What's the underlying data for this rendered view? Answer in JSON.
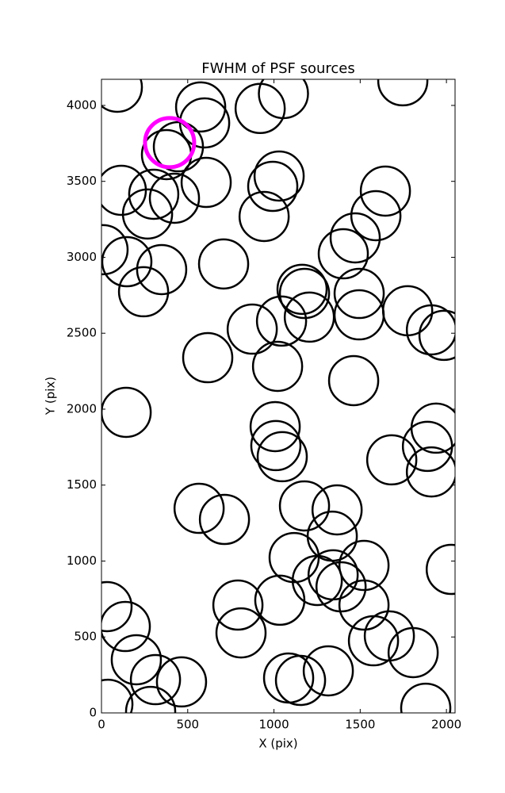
{
  "chart_data": {
    "type": "scatter",
    "title": "FWHM of PSF sources",
    "x_label": "X (pix)",
    "y_label": "Y (pix)",
    "x": [
      92,
      575,
      598,
      920,
      1055,
      1747,
      377,
      446,
      115,
      303,
      423,
      607,
      267,
      1030,
      993,
      943,
      1646,
      1591,
      1471,
      1402,
      9,
      147,
      349,
      244,
      708,
      1163,
      1177,
      1205,
      1044,
      874,
      1494,
      1494,
      1775,
      1913,
      1986,
      616,
      1021,
      1462,
      143,
      1007,
      1011,
      1048,
      1683,
      1940,
      1890,
      1913,
      566,
      713,
      1177,
      1366,
      1338,
      1117,
      1522,
      1251,
      1343,
      1389,
      2028,
      32,
      138,
      791,
      1034,
      1522,
      809,
      1577,
      1669,
      1807,
      202,
      313,
      464,
      1085,
      1154,
      1315,
      37,
      285,
      1880
    ],
    "y": [
      4120,
      3990,
      3885,
      3980,
      4078,
      4162,
      3676,
      3728,
      3441,
      3415,
      3389,
      3493,
      3285,
      3535,
      3467,
      3269,
      3436,
      3274,
      3128,
      3023,
      3050,
      2971,
      2919,
      2773,
      2956,
      2789,
      2762,
      2606,
      2580,
      2527,
      2762,
      2621,
      2648,
      2522,
      2486,
      2339,
      2282,
      2188,
      1979,
      1885,
      1760,
      1687,
      1666,
      1875,
      1755,
      1587,
      1347,
      1274,
      1363,
      1337,
      1164,
      1023,
      971,
      872,
      909,
      830,
      945,
      700,
      569,
      710,
      742,
      710,
      527,
      475,
      507,
      397,
      350,
      219,
      204,
      230,
      214,
      277,
      57,
      10,
      31
    ],
    "color": "#000000",
    "highlight": {
      "x": 395,
      "y": 3755,
      "color": "#ff00ff"
    },
    "xlim": [
      0,
      2050
    ],
    "ylim": [
      0,
      4172
    ],
    "xticks": [
      0,
      500,
      1000,
      1500,
      2000
    ],
    "yticks": [
      0,
      500,
      1000,
      1500,
      2000,
      2500,
      3000,
      3500,
      4000
    ]
  }
}
